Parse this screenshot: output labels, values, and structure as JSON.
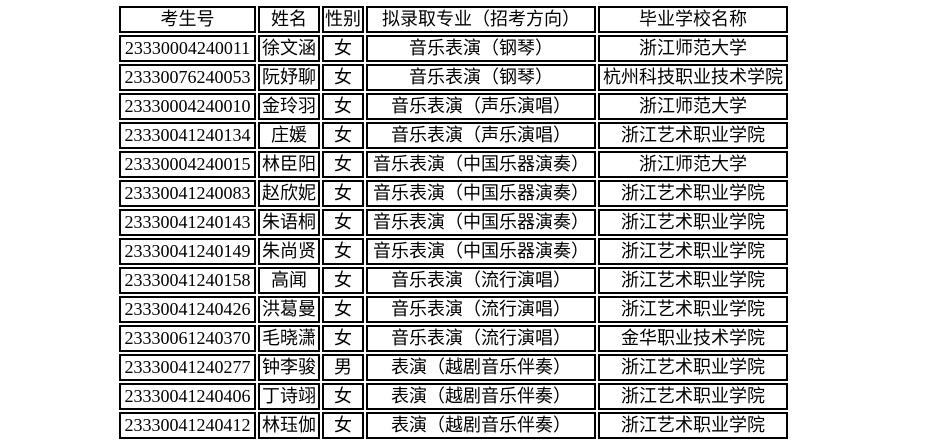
{
  "page": {
    "background_color": "#ffffff",
    "text_color": "#000000",
    "border_color": "#000000"
  },
  "table": {
    "headers": [
      "考生号",
      "姓名",
      "性别",
      "拟录取专业（招考方向）",
      "毕业学校名称"
    ],
    "rows": [
      {
        "candidate_no": "23330004240011",
        "name": "徐文涵",
        "gender": "女",
        "major": "音乐表演（钢琴）",
        "school": "浙江师范大学"
      },
      {
        "candidate_no": "23330076240053",
        "name": "阮妤聊",
        "gender": "女",
        "major": "音乐表演（钢琴）",
        "school": "杭州科技职业技术学院"
      },
      {
        "candidate_no": "23330004240010",
        "name": "金玲羽",
        "gender": "女",
        "major": "音乐表演（声乐演唱）",
        "school": "浙江师范大学"
      },
      {
        "candidate_no": "23330041240134",
        "name": "庄媛",
        "gender": "女",
        "major": "音乐表演（声乐演唱）",
        "school": "浙江艺术职业学院"
      },
      {
        "candidate_no": "23330004240015",
        "name": "林臣阳",
        "gender": "女",
        "major": "音乐表演（中国乐器演奏）",
        "school": "浙江师范大学"
      },
      {
        "candidate_no": "23330041240083",
        "name": "赵欣妮",
        "gender": "女",
        "major": "音乐表演（中国乐器演奏）",
        "school": "浙江艺术职业学院"
      },
      {
        "candidate_no": "23330041240143",
        "name": "朱语桐",
        "gender": "女",
        "major": "音乐表演（中国乐器演奏）",
        "school": "浙江艺术职业学院"
      },
      {
        "candidate_no": "23330041240149",
        "name": "朱尚贤",
        "gender": "女",
        "major": "音乐表演（中国乐器演奏）",
        "school": "浙江艺术职业学院"
      },
      {
        "candidate_no": "23330041240158",
        "name": "高闻",
        "gender": "女",
        "major": "音乐表演（流行演唱）",
        "school": "浙江艺术职业学院"
      },
      {
        "candidate_no": "23330041240426",
        "name": "洪葛曼",
        "gender": "女",
        "major": "音乐表演（流行演唱）",
        "school": "浙江艺术职业学院"
      },
      {
        "candidate_no": "23330061240370",
        "name": "毛晓潇",
        "gender": "女",
        "major": "音乐表演（流行演唱）",
        "school": "金华职业技术学院"
      },
      {
        "candidate_no": "23330041240277",
        "name": "钟李骏",
        "gender": "男",
        "major": "表演（越剧音乐伴奏）",
        "school": "浙江艺术职业学院"
      },
      {
        "candidate_no": "23330041240406",
        "name": "丁诗翊",
        "gender": "女",
        "major": "表演（越剧音乐伴奏）",
        "school": "浙江艺术职业学院"
      },
      {
        "candidate_no": "23330041240412",
        "name": "林珏伽",
        "gender": "女",
        "major": "表演（越剧音乐伴奏）",
        "school": "浙江艺术职业学院"
      }
    ]
  }
}
